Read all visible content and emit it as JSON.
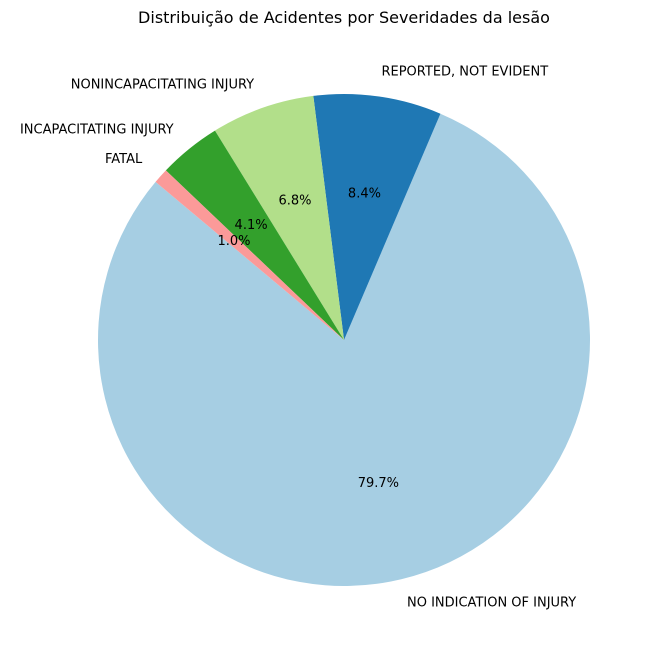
{
  "chart_data": {
    "type": "pie",
    "title": "Distribuição de Acidentes por Severidades da lesão",
    "slices": [
      {
        "label": "NO INDICATION OF INJURY",
        "value": 79.7,
        "pct_label": "79.7%",
        "color": "#a6cee3"
      },
      {
        "label": "REPORTED, NOT EVIDENT",
        "value": 8.4,
        "pct_label": "8.4%",
        "color": "#1f78b4"
      },
      {
        "label": "NONINCAPACITATING INJURY",
        "value": 6.8,
        "pct_label": "6.8%",
        "color": "#b2df8a"
      },
      {
        "label": "INCAPACITATING INJURY",
        "value": 4.1,
        "pct_label": "4.1%",
        "color": "#33a02c"
      },
      {
        "label": "FATAL",
        "value": 1.0,
        "pct_label": "1.0%",
        "color": "#fb9a99"
      }
    ],
    "start_angle_deg": 140,
    "direction": "counterclockwise"
  }
}
